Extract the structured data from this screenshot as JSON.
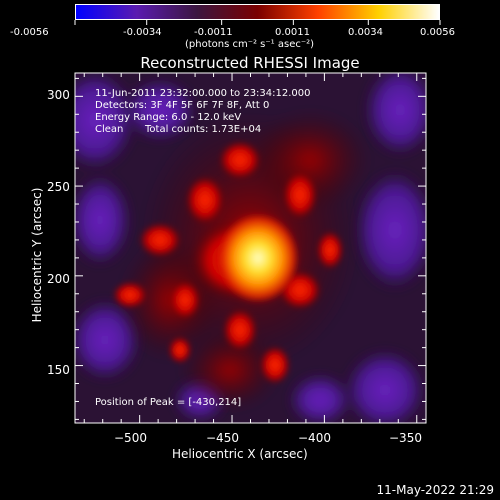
{
  "colorbar": {
    "tick_labels": [
      "-0.0056",
      "-0.0034",
      "-0.0011",
      "0.0011",
      "0.0034",
      "0.0056"
    ],
    "unit_label": "(photons cm⁻² s⁻¹ asec⁻²)",
    "range": [
      -0.0056,
      0.0056
    ],
    "colors": [
      "#0000ff",
      "#5a1bb0",
      "#3c1640",
      "#7a0000",
      "#ff4000",
      "#ffd000",
      "#ffffff"
    ]
  },
  "title": "Reconstructed RHESSI Image",
  "annotations": {
    "time_range": "11-Jun-2011 23:32:00.000 to 23:34:12.000",
    "detectors": "Detectors: 3F 4F 5F 6F 7F 8F, Att 0",
    "energy": "Energy Range: 6.0 - 12.0 keV",
    "clean_label": "Clean",
    "counts": "Total counts: 1.73E+04",
    "peak": "Position of Peak = [-430,214]"
  },
  "chart_data": {
    "type": "heatmap",
    "xlabel": "Heliocentric X (arcsec)",
    "ylabel": "Heliocentric Y (arcsec)",
    "xlim": [
      -535,
      -345
    ],
    "ylim": [
      118,
      313
    ],
    "xticks": [
      -500,
      -450,
      -400,
      -350
    ],
    "yticks": [
      150,
      200,
      250,
      300
    ],
    "xtick_labels": [
      "−500",
      "−450",
      "−400",
      "−350"
    ],
    "ytick_labels": [
      "150",
      "200",
      "250",
      "300"
    ],
    "peak": {
      "x": -430,
      "y": 214
    }
  },
  "footer": {
    "date": "11-May-2022 21:29"
  }
}
